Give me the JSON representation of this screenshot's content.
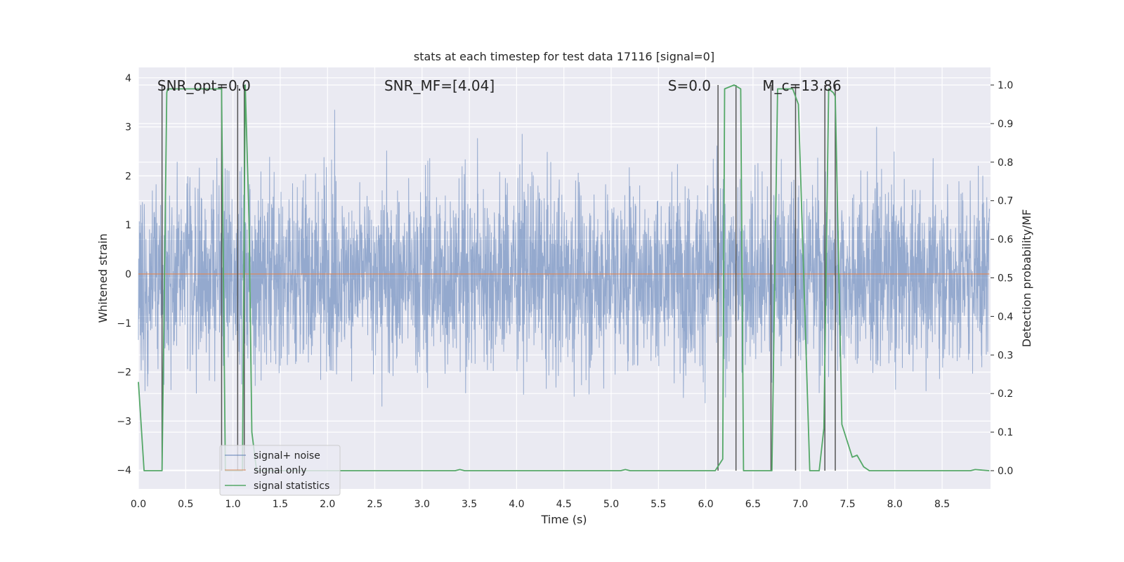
{
  "chart_data": {
    "type": "line",
    "title": "stats at each timestep for test data 17116 [signal=0]",
    "xlabel": "Time (s)",
    "ylabel": "Whitened strain",
    "y2label": "Detection probability/MF",
    "xlim": [
      0.0,
      9.0
    ],
    "ylim": [
      -4.4,
      4.2
    ],
    "y2lim": [
      -0.05,
      1.035
    ],
    "xticks": [
      0.0,
      0.5,
      1.0,
      1.5,
      2.0,
      2.5,
      3.0,
      3.5,
      4.0,
      4.5,
      5.0,
      5.5,
      6.0,
      6.5,
      7.0,
      7.5,
      8.0,
      8.5
    ],
    "xtick_labels": [
      "0.0",
      "0.5",
      "1.0",
      "1.5",
      "2.0",
      "2.5",
      "3.0",
      "3.5",
      "4.0",
      "4.5",
      "5.0",
      "5.5",
      "6.0",
      "6.5",
      "7.0",
      "7.5",
      "8.0",
      "8.5"
    ],
    "yticks": [
      -4,
      -3,
      -2,
      -1,
      0,
      1,
      2,
      3,
      4
    ],
    "ytick_labels": [
      "−4",
      "−3",
      "−2",
      "−1",
      "0",
      "1",
      "2",
      "3",
      "4"
    ],
    "y2ticks": [
      0.0,
      0.1,
      0.2,
      0.3,
      0.4,
      0.5,
      0.6,
      0.7,
      0.8,
      0.9,
      1.0
    ],
    "y2tick_labels": [
      "0.0",
      "0.1",
      "0.2",
      "0.3",
      "0.4",
      "0.5",
      "0.6",
      "0.7",
      "0.8",
      "0.9",
      "1.0"
    ],
    "grid": true,
    "legend_position": "lower-left",
    "annotations": [
      {
        "name": "snr-opt",
        "text": "SNR_opt=0.0",
        "x": 0.2,
        "y": 3.9
      },
      {
        "name": "snr-mf",
        "text": "SNR_MF=[4.04]",
        "x": 2.6,
        "y": 3.9
      },
      {
        "name": "s-value",
        "text": "S=0.0",
        "x": 5.6,
        "y": 3.9
      },
      {
        "name": "chirp-mass",
        "text": "M_c=13.86",
        "x": 6.6,
        "y": 3.9
      }
    ],
    "series": [
      {
        "name": "signal+ noise",
        "color": "#4c72b0",
        "description": "whitened strain noise; envelope approx within -2.5..2.5 with spikes up to 3.6 and down to -3.9",
        "amplitude_range": [
          -3.9,
          3.6
        ]
      },
      {
        "name": "signal only",
        "color": "#dd8452",
        "x": [
          0.0,
          9.0
        ],
        "y": [
          0.0,
          0.0
        ]
      },
      {
        "name": "signal statistics",
        "color": "#55a868",
        "axis": "right",
        "x": [
          0.0,
          0.06,
          0.25,
          0.3,
          0.31,
          0.35,
          0.88,
          0.92,
          0.96,
          1.0,
          1.02,
          1.1,
          1.13,
          1.17,
          1.2,
          1.25,
          1.3,
          3.35,
          3.4,
          3.45,
          5.1,
          5.15,
          5.2,
          6.1,
          6.18,
          6.2,
          6.3,
          6.37,
          6.4,
          6.65,
          6.7,
          6.76,
          6.78,
          6.92,
          6.98,
          7.1,
          7.2,
          7.25,
          7.3,
          7.35,
          7.37,
          7.44,
          7.55,
          7.6,
          7.67,
          7.73,
          8.8,
          8.85,
          9.0
        ],
        "y": [
          0.23,
          0.0,
          0.0,
          0.98,
          0.99,
          0.99,
          0.99,
          0.0,
          0.0,
          0.0,
          0.0,
          0.0,
          1.0,
          0.65,
          0.1,
          0.0,
          0.0,
          0.0,
          0.003,
          0.0,
          0.0,
          0.003,
          0.0,
          0.0,
          0.03,
          0.99,
          1.0,
          0.99,
          0.0,
          0.0,
          0.0,
          0.99,
          0.99,
          0.99,
          0.95,
          0.0,
          0.0,
          0.11,
          0.99,
          0.98,
          0.97,
          0.12,
          0.035,
          0.04,
          0.01,
          0.0,
          0.0,
          0.003,
          0.0
        ]
      }
    ],
    "vertical_markers": [
      0.25,
      0.88,
      1.05,
      1.12,
      6.13,
      6.32,
      6.69,
      6.95,
      7.26,
      7.37
    ]
  }
}
